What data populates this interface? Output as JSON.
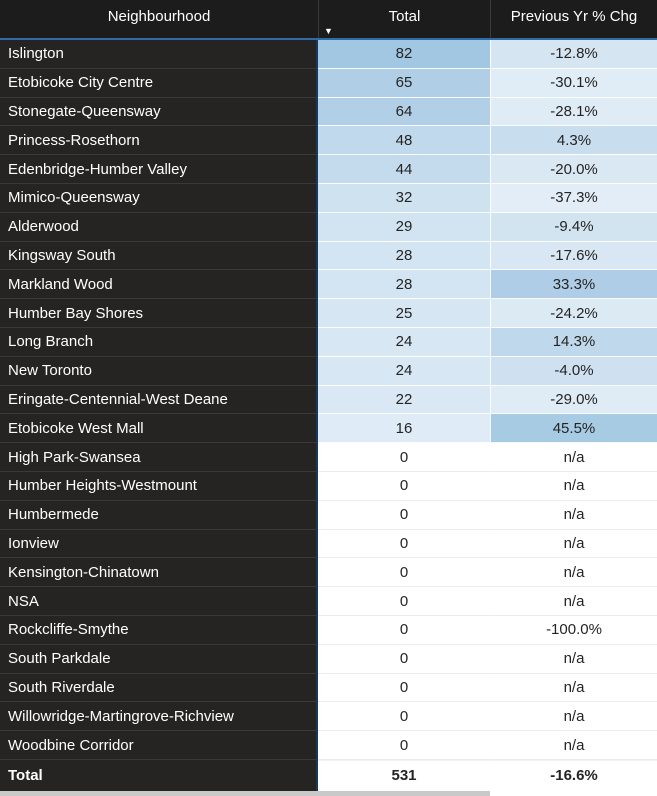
{
  "header": {
    "sort_icon": "▼",
    "sorted_column": "Total",
    "sort_direction": "descending"
  },
  "chart_data": {
    "type": "table",
    "title": "Neighbourhood totals with previous year percent change",
    "columns": [
      "Neighbourhood",
      "Total",
      "Previous Yr % Chg"
    ],
    "rows": [
      [
        "Islington",
        82,
        "-12.8%"
      ],
      [
        "Etobicoke City Centre",
        65,
        "-30.1%"
      ],
      [
        "Stonegate-Queensway",
        64,
        "-28.1%"
      ],
      [
        "Princess-Rosethorn",
        48,
        "4.3%"
      ],
      [
        "Edenbridge-Humber Valley",
        44,
        "-20.0%"
      ],
      [
        "Mimico-Queensway",
        32,
        "-37.3%"
      ],
      [
        "Alderwood",
        29,
        "-9.4%"
      ],
      [
        "Kingsway South",
        28,
        "-17.6%"
      ],
      [
        "Markland Wood",
        28,
        "33.3%"
      ],
      [
        "Humber Bay Shores",
        25,
        "-24.2%"
      ],
      [
        "Long Branch",
        24,
        "14.3%"
      ],
      [
        "New Toronto",
        24,
        "-4.0%"
      ],
      [
        "Eringate-Centennial-West Deane",
        22,
        "-29.0%"
      ],
      [
        "Etobicoke West Mall",
        16,
        "45.5%"
      ],
      [
        "High Park-Swansea",
        0,
        "n/a"
      ],
      [
        "Humber Heights-Westmount",
        0,
        "n/a"
      ],
      [
        "Humbermede",
        0,
        "n/a"
      ],
      [
        "Ionview",
        0,
        "n/a"
      ],
      [
        "Kensington-Chinatown",
        0,
        "n/a"
      ],
      [
        "NSA",
        0,
        "n/a"
      ],
      [
        "Rockcliffe-Smythe",
        0,
        "-100.0%"
      ],
      [
        "South Parkdale",
        0,
        "n/a"
      ],
      [
        "South Riverdale",
        0,
        "n/a"
      ],
      [
        "Willowridge-Martingrove-Richview",
        0,
        "n/a"
      ],
      [
        "Woodbine Corridor",
        0,
        "n/a"
      ]
    ],
    "footer": [
      "Total",
      531,
      "-16.6%"
    ],
    "layout_hints": {
      "sort": "Total descending",
      "conditional_formatting": "blue gradient background on Total and Previous Yr % Chg columns, darker blue = higher value, white = zero/minimum"
    }
  },
  "formatting": {
    "total_bg": [
      "#a2c7e2",
      "#b0cfe7",
      "#b1d0e7",
      "#c0d9ec",
      "#c4dbed",
      "#cfe2f0",
      "#d2e4f1",
      "#d3e5f2",
      "#d3e5f2",
      "#d6e6f3",
      "#d7e7f3",
      "#d7e7f3",
      "#d9e8f4",
      "#dfebf6",
      "#ffffff",
      "#ffffff",
      "#ffffff",
      "#ffffff",
      "#ffffff",
      "#ffffff",
      "#ffffff",
      "#ffffff",
      "#ffffff",
      "#ffffff",
      "#ffffff"
    ],
    "chg_bg": [
      "#d5e5f2",
      "#e0ecf6",
      "#dfebf5",
      "#c8ddee",
      "#dae8f4",
      "#e3edf7",
      "#d3e4f1",
      "#d8e7f3",
      "#afcde6",
      "#dceaf4",
      "#c0d8eb",
      "#cfe1f0",
      "#dfebf5",
      "#a8cbe4",
      "#ffffff",
      "#ffffff",
      "#ffffff",
      "#ffffff",
      "#ffffff",
      "#ffffff",
      "#ffffff",
      "#ffffff",
      "#ffffff",
      "#ffffff",
      "#ffffff"
    ],
    "colors": {
      "header_bg": "#1d1c1c",
      "row_label_bg": "#252423",
      "header_underline_blue": "#2e6da4",
      "column_divider_navy": "#16395f",
      "text_light": "#ffffff",
      "text_dark": "#252423",
      "bottom_strip_gray": "#c9c9c9"
    }
  }
}
